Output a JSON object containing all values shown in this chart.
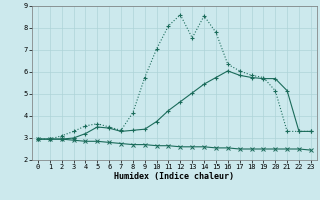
{
  "xlabel": "Humidex (Indice chaleur)",
  "bg_color": "#cce9ed",
  "grid_color": "#aed4d8",
  "line_color": "#1a6b5a",
  "xlim": [
    -0.5,
    23.5
  ],
  "ylim": [
    2,
    9
  ],
  "xticks": [
    0,
    1,
    2,
    3,
    4,
    5,
    6,
    7,
    8,
    9,
    10,
    11,
    12,
    13,
    14,
    15,
    16,
    17,
    18,
    19,
    20,
    21,
    22,
    23
  ],
  "yticks": [
    2,
    3,
    4,
    5,
    6,
    7,
    8,
    9
  ],
  "line1_x": [
    0,
    1,
    2,
    3,
    4,
    5,
    6,
    7,
    8,
    9,
    10,
    11,
    12,
    13,
    14,
    15,
    16,
    17,
    18,
    19,
    20,
    21,
    22,
    23
  ],
  "line1_y": [
    2.95,
    2.95,
    2.95,
    2.9,
    2.85,
    2.85,
    2.8,
    2.75,
    2.7,
    2.7,
    2.65,
    2.65,
    2.6,
    2.6,
    2.6,
    2.55,
    2.55,
    2.5,
    2.5,
    2.5,
    2.5,
    2.5,
    2.5,
    2.45
  ],
  "line2_x": [
    0,
    1,
    2,
    3,
    4,
    5,
    6,
    7,
    8,
    9,
    10,
    11,
    12,
    13,
    14,
    15,
    16,
    17,
    18,
    19,
    20,
    21,
    22,
    23
  ],
  "line2_y": [
    2.95,
    2.95,
    3.1,
    3.3,
    3.55,
    3.65,
    3.5,
    3.35,
    4.15,
    5.75,
    7.05,
    8.1,
    8.6,
    7.55,
    8.55,
    7.8,
    6.35,
    6.05,
    5.85,
    5.75,
    5.15,
    3.3,
    3.3,
    3.3
  ],
  "line3_x": [
    0,
    1,
    2,
    3,
    4,
    5,
    6,
    7,
    8,
    9,
    10,
    11,
    12,
    13,
    14,
    15,
    16,
    17,
    18,
    19,
    20,
    21,
    22,
    23
  ],
  "line3_y": [
    2.95,
    2.95,
    2.95,
    3.0,
    3.2,
    3.5,
    3.45,
    3.3,
    3.35,
    3.4,
    3.75,
    4.25,
    4.65,
    5.05,
    5.45,
    5.75,
    6.05,
    5.85,
    5.75,
    5.7,
    5.7,
    5.15,
    3.3,
    3.3
  ]
}
